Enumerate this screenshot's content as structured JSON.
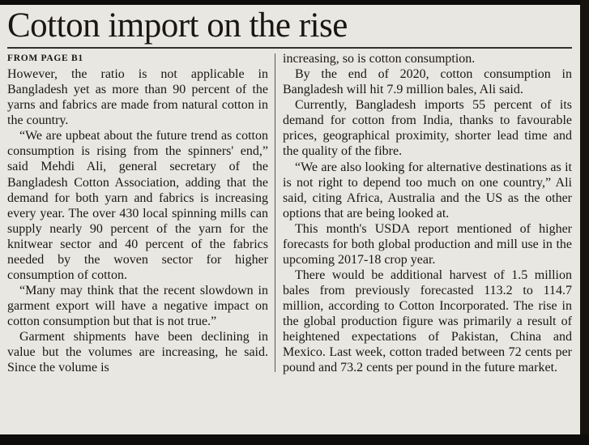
{
  "page": {
    "paper_color": "#e9e7e2",
    "ink_color": "#1a1713"
  },
  "article": {
    "title": "Cotton import on the rise",
    "kicker": "FROM PAGE B1",
    "columns": [
      {
        "paragraphs": [
          "However, the ratio is not applicable in Bangladesh yet as more than 90 percent of the yarns and fabrics are made from natural cotton in the country.",
          "“We are upbeat about the future trend as cotton consumption is rising from the spinners' end,” said Mehdi Ali, general secretary of the Bangladesh Cotton Association, adding that the demand for both yarn and fabrics is increasing every year.  The over 430 local spinning mills can supply nearly 90 percent of the yarn for the knitwear sector and 40 percent of the fabrics needed by the woven sector for higher consumption of cotton.",
          "“Many may think that the recent slowdown in garment export will have a negative impact on cotton consumption but that is not true.”",
          "Garment shipments have been declining in value but the volumes are increasing, he said. Since the volume is"
        ]
      },
      {
        "paragraphs": [
          "increasing, so is cotton consumption.",
          "By the end of 2020, cotton consumption in Bangladesh will hit 7.9 million bales, Ali said.",
          "Currently, Bangladesh imports 55 percent of its demand for cotton from India, thanks to favourable prices, geographical proximity, shorter lead time and the quality of the fibre.",
          "“We are also looking for alternative destinations as it is not right to depend too much on one country,” Ali said, citing Africa, Australia and the US as the other options that are being looked at.",
          "This month's USDA report mentioned of higher forecasts for both global production and mill use in the upcoming 2017-18 crop year.",
          "There would be additional harvest of 1.5 million bales from previously forecasted 113.2 to 114.7 million, according to Cotton Incorporated.  The rise in the global production figure was primarily a result of heightened expectations of Pakistan, China and Mexico. Last week, cotton traded between 72 cents per pound and 73.2 cents per pound in the future market."
        ]
      }
    ]
  }
}
